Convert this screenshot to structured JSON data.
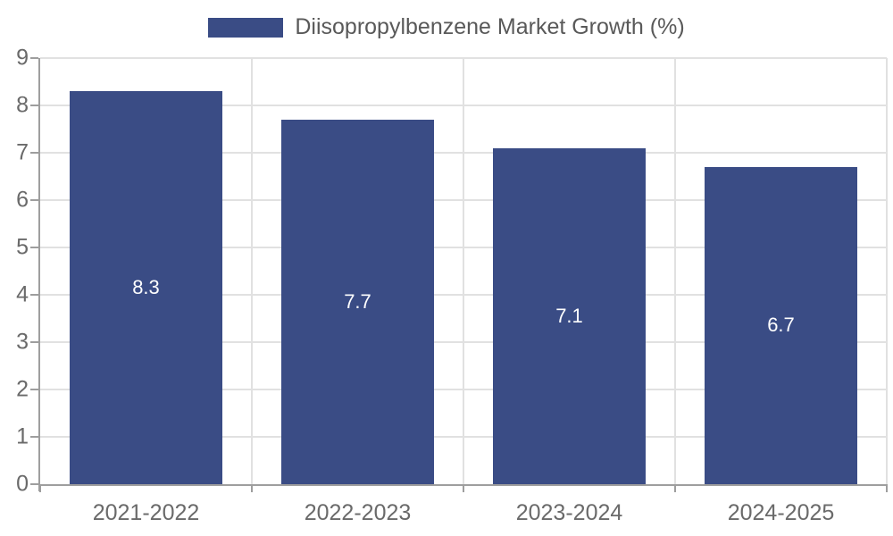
{
  "legend": {
    "label": "Diisopropylbenzene Market Growth (%)"
  },
  "colors": {
    "bar": "#3a4c85",
    "grid": "#e1e1e1",
    "axis": "#9e9e9e",
    "tick_label": "#6a6a6a",
    "value_label": "#ffffff",
    "legend_text": "#595959",
    "background": "#ffffff"
  },
  "chart_data": {
    "type": "bar",
    "categories": [
      "2021-2022",
      "2022-2023",
      "2023-2024",
      "2024-2025"
    ],
    "values": [
      8.3,
      7.7,
      7.1,
      6.7
    ],
    "value_labels": [
      "8.3",
      "7.7",
      "7.1",
      "6.7"
    ],
    "legend_label": "Diisopropylbenzene Market Growth (%)",
    "title": "",
    "xlabel": "",
    "ylabel": "",
    "ylim": [
      0,
      9
    ],
    "yticks": [
      0,
      1,
      2,
      3,
      4,
      5,
      6,
      7,
      8,
      9
    ],
    "grid": true,
    "legend_position": "top-center",
    "bar_width_ratio": 0.72
  }
}
